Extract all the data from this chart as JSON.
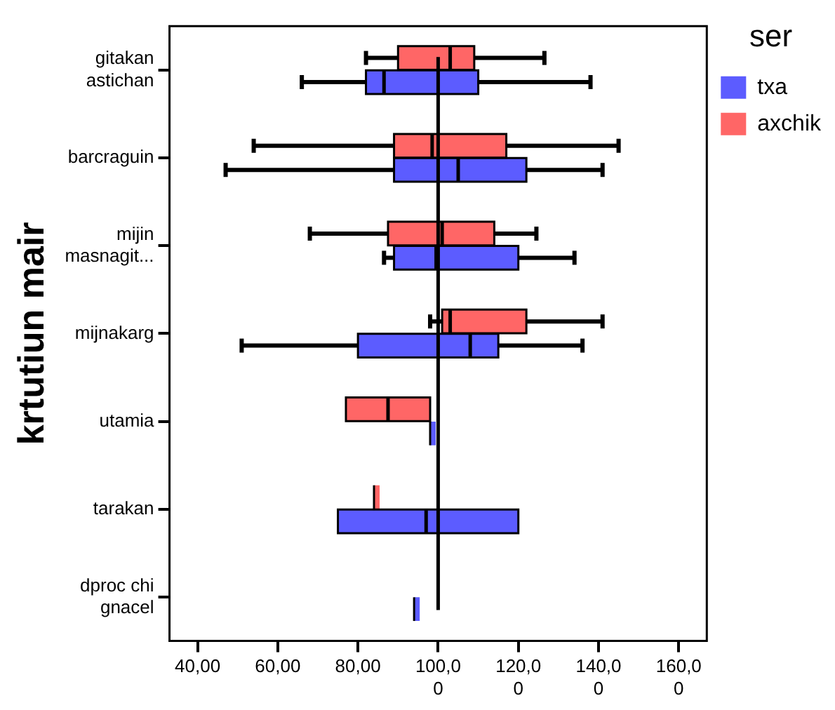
{
  "chart_data": {
    "type": "box",
    "orientation": "horizontal",
    "ylabel": "krtutiun mair",
    "legend_title": "ser",
    "legend": "top right",
    "grid": false,
    "categories": [
      "gitakan astichan",
      "barcraguin",
      "mijin masnagit...",
      "mijnakarg",
      "utamia",
      "tarakan",
      "dproc chi gnacel"
    ],
    "xlim": [
      33,
      167
    ],
    "xticks": [
      {
        "value": 40,
        "label": "40,00"
      },
      {
        "value": 60,
        "label": "60,00"
      },
      {
        "value": 80,
        "label": "80,00"
      },
      {
        "value": 100,
        "label": "100,00"
      },
      {
        "value": 120,
        "label": "120,00"
      },
      {
        "value": 140,
        "label": "140,00"
      },
      {
        "value": 160,
        "label": "160,00"
      }
    ],
    "ref_lines": [
      {
        "axis": "x",
        "value": 100,
        "color": "#000000"
      }
    ],
    "series": [
      {
        "name": "txa",
        "color": "#5c5cff",
        "boxes": [
          {
            "low": 66,
            "q1": 82,
            "median": 86.5,
            "q3": 110,
            "high": 138
          },
          {
            "low": 47,
            "q1": 89,
            "median": 105,
            "q3": 122,
            "high": 141
          },
          {
            "low": 86.5,
            "q1": 89,
            "median": 99.5,
            "q3": 120,
            "high": 134
          },
          {
            "low": 51,
            "q1": 80,
            "median": 108,
            "q3": 115,
            "high": 136
          },
          {
            "low": 98,
            "q1": 98,
            "median": 98,
            "q3": 98,
            "high": 98
          },
          {
            "low": 75,
            "q1": 75,
            "median": 97,
            "q3": 120,
            "high": 120
          },
          {
            "low": 94,
            "q1": 94,
            "median": 94,
            "q3": 94,
            "high": 94
          }
        ]
      },
      {
        "name": "axchik",
        "color": "#ff6666",
        "boxes": [
          {
            "low": 82,
            "q1": 90,
            "median": 103,
            "q3": 109,
            "high": 126.5
          },
          {
            "low": 54,
            "q1": 89,
            "median": 98.5,
            "q3": 117,
            "high": 145
          },
          {
            "low": 68,
            "q1": 87.5,
            "median": 101,
            "q3": 114,
            "high": 124.5
          },
          {
            "low": 98,
            "q1": 101,
            "median": 103,
            "q3": 122,
            "high": 141
          },
          {
            "low": 77,
            "q1": 77,
            "median": 87.5,
            "q3": 98,
            "high": 98
          },
          {
            "low": 84,
            "q1": 84,
            "median": 84,
            "q3": 84,
            "high": 84
          },
          null
        ]
      }
    ]
  }
}
